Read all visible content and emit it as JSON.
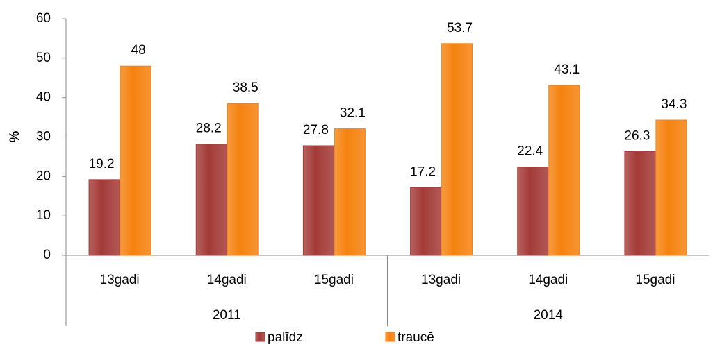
{
  "chart_data": {
    "type": "bar",
    "y_label": "%",
    "categories": [
      "13gadi",
      "14gadi",
      "15gadi",
      "13gadi",
      "14gadi",
      "15gadi"
    ],
    "category_groups": [
      "2011",
      "2014"
    ],
    "series": [
      {
        "name": "palīdz",
        "color": "#a33b38",
        "values": [
          19.2,
          28.2,
          27.8,
          17.2,
          22.4,
          26.3
        ]
      },
      {
        "name": "traucē",
        "color": "#f5820f",
        "values": [
          48,
          38.5,
          32.1,
          53.7,
          43.1,
          34.3
        ]
      }
    ],
    "ylim": [
      0,
      60
    ],
    "yticks": [
      0,
      10,
      20,
      30,
      40,
      50,
      60
    ],
    "grid": false,
    "legend": "bottom"
  }
}
